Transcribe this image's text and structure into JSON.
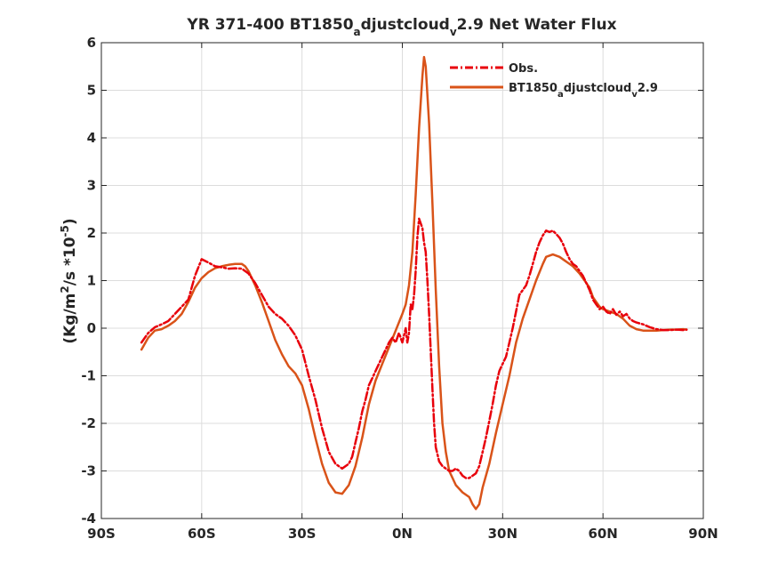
{
  "chart_data": {
    "type": "line",
    "title": {
      "part1": "YR 371-400 BT1850",
      "sub1": "a",
      "part2": "djustcloud",
      "sub2": "v",
      "part3": "2.9  Net Water Flux"
    },
    "ylabel": {
      "part1": "(Kg/m",
      "sup1": "2",
      "part2": "/s *10",
      "sup2": "-5",
      "part3": ")"
    },
    "xlabel": "",
    "xlim": [
      -90,
      90
    ],
    "ylim": [
      -4,
      6
    ],
    "x_ticks": [
      {
        "value": -90,
        "label": "90S"
      },
      {
        "value": -60,
        "label": "60S"
      },
      {
        "value": -30,
        "label": "30S"
      },
      {
        "value": 0,
        "label": "0N"
      },
      {
        "value": 30,
        "label": "30N"
      },
      {
        "value": 60,
        "label": "60N"
      },
      {
        "value": 90,
        "label": "90N"
      }
    ],
    "y_ticks": [
      {
        "value": -4,
        "label": "-4"
      },
      {
        "value": -3,
        "label": "-3"
      },
      {
        "value": -2,
        "label": "-2"
      },
      {
        "value": -1,
        "label": "-1"
      },
      {
        "value": 0,
        "label": "0"
      },
      {
        "value": 1,
        "label": "1"
      },
      {
        "value": 2,
        "label": "2"
      },
      {
        "value": 3,
        "label": "3"
      },
      {
        "value": 4,
        "label": "4"
      },
      {
        "value": 5,
        "label": "5"
      },
      {
        "value": 6,
        "label": "6"
      }
    ],
    "grid": true,
    "legend_position": "top-right",
    "series": [
      {
        "name": "Obs.",
        "color": "#e8000b",
        "style": "dashdot",
        "points": [
          [
            -78,
            -0.3
          ],
          [
            -76,
            -0.1
          ],
          [
            -74,
            0.02
          ],
          [
            -72,
            0.08
          ],
          [
            -70,
            0.15
          ],
          [
            -68,
            0.3
          ],
          [
            -66,
            0.45
          ],
          [
            -64,
            0.6
          ],
          [
            -62,
            1.1
          ],
          [
            -60,
            1.45
          ],
          [
            -58,
            1.38
          ],
          [
            -56,
            1.3
          ],
          [
            -54,
            1.28
          ],
          [
            -52,
            1.25
          ],
          [
            -50,
            1.26
          ],
          [
            -48,
            1.25
          ],
          [
            -46,
            1.15
          ],
          [
            -44,
            0.95
          ],
          [
            -42,
            0.7
          ],
          [
            -40,
            0.45
          ],
          [
            -38,
            0.3
          ],
          [
            -36,
            0.2
          ],
          [
            -34,
            0.05
          ],
          [
            -32,
            -0.15
          ],
          [
            -30,
            -0.45
          ],
          [
            -28,
            -1.0
          ],
          [
            -26,
            -1.5
          ],
          [
            -24,
            -2.1
          ],
          [
            -22,
            -2.6
          ],
          [
            -20,
            -2.85
          ],
          [
            -19,
            -2.9
          ],
          [
            -18,
            -2.95
          ],
          [
            -17,
            -2.9
          ],
          [
            -16,
            -2.85
          ],
          [
            -15,
            -2.7
          ],
          [
            -14,
            -2.4
          ],
          [
            -13,
            -2.1
          ],
          [
            -12,
            -1.75
          ],
          [
            -11,
            -1.5
          ],
          [
            -10,
            -1.2
          ],
          [
            -9,
            -1.05
          ],
          [
            -8,
            -0.9
          ],
          [
            -7,
            -0.75
          ],
          [
            -6,
            -0.6
          ],
          [
            -5,
            -0.45
          ],
          [
            -4,
            -0.3
          ],
          [
            -3,
            -0.2
          ],
          [
            -2,
            -0.3
          ],
          [
            -1,
            -0.1
          ],
          [
            0,
            -0.3
          ],
          [
            1,
            0.0
          ],
          [
            1.5,
            -0.3
          ],
          [
            2,
            -0.1
          ],
          [
            2.5,
            0.5
          ],
          [
            3,
            0.4
          ],
          [
            3.5,
            0.7
          ],
          [
            4,
            1.2
          ],
          [
            4.5,
            1.9
          ],
          [
            5,
            2.3
          ],
          [
            5.5,
            2.2
          ],
          [
            6,
            2.1
          ],
          [
            6.5,
            1.8
          ],
          [
            7,
            1.6
          ],
          [
            7.5,
            1.0
          ],
          [
            8,
            0.3
          ],
          [
            8.5,
            -0.5
          ],
          [
            9,
            -1.3
          ],
          [
            9.5,
            -2.0
          ],
          [
            10,
            -2.5
          ],
          [
            11,
            -2.8
          ],
          [
            12,
            -2.9
          ],
          [
            13,
            -2.95
          ],
          [
            14,
            -3.0
          ],
          [
            15,
            -3.0
          ],
          [
            16,
            -2.95
          ],
          [
            17,
            -3.0
          ],
          [
            18,
            -3.1
          ],
          [
            19,
            -3.15
          ],
          [
            20,
            -3.15
          ],
          [
            21,
            -3.1
          ],
          [
            22,
            -3.05
          ],
          [
            23,
            -2.9
          ],
          [
            24,
            -2.6
          ],
          [
            25,
            -2.3
          ],
          [
            26,
            -1.95
          ],
          [
            27,
            -1.6
          ],
          [
            28,
            -1.2
          ],
          [
            29,
            -0.9
          ],
          [
            30,
            -0.75
          ],
          [
            31,
            -0.6
          ],
          [
            32,
            -0.3
          ],
          [
            33,
            0.0
          ],
          [
            34,
            0.35
          ],
          [
            35,
            0.7
          ],
          [
            36,
            0.8
          ],
          [
            37,
            0.9
          ],
          [
            38,
            1.1
          ],
          [
            39,
            1.35
          ],
          [
            40,
            1.6
          ],
          [
            41,
            1.8
          ],
          [
            42,
            1.95
          ],
          [
            43,
            2.05
          ],
          [
            44,
            2.02
          ],
          [
            45,
            2.05
          ],
          [
            46,
            1.98
          ],
          [
            47,
            1.9
          ],
          [
            48,
            1.78
          ],
          [
            49,
            1.6
          ],
          [
            50,
            1.45
          ],
          [
            51,
            1.35
          ],
          [
            52,
            1.3
          ],
          [
            53,
            1.2
          ],
          [
            54,
            1.1
          ],
          [
            55,
            0.95
          ],
          [
            56,
            0.8
          ],
          [
            57,
            0.6
          ],
          [
            58,
            0.5
          ],
          [
            59,
            0.4
          ],
          [
            60,
            0.45
          ],
          [
            61,
            0.35
          ],
          [
            62,
            0.3
          ],
          [
            63,
            0.4
          ],
          [
            64,
            0.28
          ],
          [
            65,
            0.35
          ],
          [
            66,
            0.25
          ],
          [
            67,
            0.3
          ],
          [
            68,
            0.2
          ],
          [
            69,
            0.15
          ],
          [
            70,
            0.12
          ],
          [
            72,
            0.08
          ],
          [
            74,
            0.02
          ],
          [
            76,
            -0.02
          ],
          [
            78,
            -0.04
          ],
          [
            80,
            -0.04
          ],
          [
            82,
            -0.03
          ],
          [
            84,
            -0.04
          ],
          [
            85,
            -0.03
          ]
        ]
      },
      {
        "name": "BT1850adjustcloudv2.9",
        "label_parts": [
          "BT1850",
          "a",
          "djustcloud",
          "v",
          "2.9"
        ],
        "color": "#d95319",
        "style": "solid",
        "points": [
          [
            -78,
            -0.45
          ],
          [
            -76,
            -0.2
          ],
          [
            -74,
            -0.05
          ],
          [
            -72,
            -0.02
          ],
          [
            -70,
            0.05
          ],
          [
            -68,
            0.15
          ],
          [
            -66,
            0.3
          ],
          [
            -64,
            0.55
          ],
          [
            -62,
            0.85
          ],
          [
            -60,
            1.05
          ],
          [
            -58,
            1.18
          ],
          [
            -56,
            1.26
          ],
          [
            -54,
            1.3
          ],
          [
            -52,
            1.33
          ],
          [
            -50,
            1.35
          ],
          [
            -48,
            1.35
          ],
          [
            -47,
            1.3
          ],
          [
            -46,
            1.2
          ],
          [
            -44,
            0.9
          ],
          [
            -42,
            0.55
          ],
          [
            -40,
            0.15
          ],
          [
            -38,
            -0.25
          ],
          [
            -36,
            -0.55
          ],
          [
            -34,
            -0.8
          ],
          [
            -32,
            -0.95
          ],
          [
            -30,
            -1.2
          ],
          [
            -28,
            -1.7
          ],
          [
            -26,
            -2.3
          ],
          [
            -24,
            -2.85
          ],
          [
            -22,
            -3.25
          ],
          [
            -20,
            -3.45
          ],
          [
            -18,
            -3.48
          ],
          [
            -16,
            -3.3
          ],
          [
            -14,
            -2.9
          ],
          [
            -12,
            -2.3
          ],
          [
            -10,
            -1.6
          ],
          [
            -8,
            -1.1
          ],
          [
            -6,
            -0.75
          ],
          [
            -4,
            -0.4
          ],
          [
            -2,
            -0.05
          ],
          [
            0,
            0.3
          ],
          [
            1,
            0.5
          ],
          [
            2,
            0.9
          ],
          [
            3,
            1.6
          ],
          [
            4,
            2.8
          ],
          [
            5,
            4.2
          ],
          [
            6,
            5.3
          ],
          [
            6.5,
            5.7
          ],
          [
            7,
            5.5
          ],
          [
            8,
            4.3
          ],
          [
            9,
            2.6
          ],
          [
            10,
            0.8
          ],
          [
            11,
            -0.8
          ],
          [
            12,
            -2.0
          ],
          [
            13,
            -2.6
          ],
          [
            14,
            -3.0
          ],
          [
            16,
            -3.3
          ],
          [
            18,
            -3.45
          ],
          [
            20,
            -3.55
          ],
          [
            21,
            -3.7
          ],
          [
            22,
            -3.8
          ],
          [
            23,
            -3.7
          ],
          [
            24,
            -3.35
          ],
          [
            26,
            -2.85
          ],
          [
            28,
            -2.2
          ],
          [
            30,
            -1.6
          ],
          [
            32,
            -1.0
          ],
          [
            34,
            -0.3
          ],
          [
            36,
            0.2
          ],
          [
            38,
            0.6
          ],
          [
            40,
            1.0
          ],
          [
            42,
            1.35
          ],
          [
            43,
            1.5
          ],
          [
            45,
            1.55
          ],
          [
            47,
            1.5
          ],
          [
            49,
            1.4
          ],
          [
            51,
            1.3
          ],
          [
            53,
            1.15
          ],
          [
            55,
            0.95
          ],
          [
            56,
            0.85
          ],
          [
            57,
            0.65
          ],
          [
            58,
            0.55
          ],
          [
            59,
            0.45
          ],
          [
            60,
            0.4
          ],
          [
            62,
            0.35
          ],
          [
            64,
            0.3
          ],
          [
            66,
            0.2
          ],
          [
            68,
            0.05
          ],
          [
            70,
            -0.02
          ],
          [
            72,
            -0.05
          ],
          [
            74,
            -0.05
          ],
          [
            76,
            -0.05
          ],
          [
            78,
            -0.04
          ],
          [
            80,
            -0.03
          ],
          [
            82,
            -0.03
          ],
          [
            84,
            -0.02
          ],
          [
            85,
            -0.03
          ]
        ]
      }
    ]
  }
}
